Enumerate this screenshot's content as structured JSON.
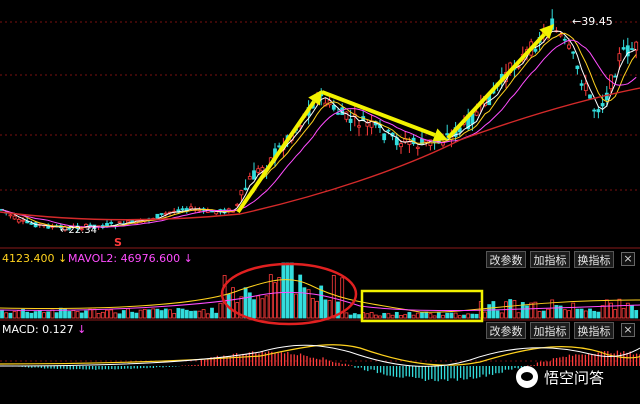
{
  "price_panel": {
    "peak_label": "39.45",
    "low_label": "22.34",
    "marker_s": "S"
  },
  "volume_panel": {
    "mavol1_label": "4123.400",
    "mavol1_arrow": "↓",
    "mavol2_label": "MAVOL2: 46976.600",
    "mavol2_arrow": "↓",
    "buttons": [
      "改参数",
      "加指标",
      "换指标"
    ],
    "close_label": "×"
  },
  "macd_panel": {
    "macd_label": "MACD: 0.127",
    "macd_arrow": "↓",
    "buttons": [
      "改参数",
      "加指标",
      "换指标"
    ],
    "close_label": "×"
  },
  "watermark": {
    "text": "悟空问答"
  },
  "colors": {
    "up": "#ff3c3c",
    "down": "#33dddd",
    "ma_white": "#ffffff",
    "ma_yellow": "#ffd21e",
    "ma_magenta": "#ff4dff",
    "ma_red": "#d42a2a",
    "arrow": "#f2f200",
    "annotation_circle": "#e02020",
    "annotation_box": "#f2f200",
    "text_yellow": "#ffd21e",
    "text_magenta": "#ff4dff",
    "text_cyan": "#33dddd"
  }
}
